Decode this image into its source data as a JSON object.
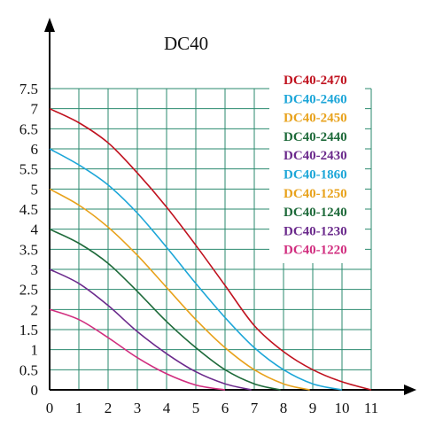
{
  "chart_data": {
    "type": "line",
    "title": "DC40",
    "xlabel": "",
    "ylabel": "",
    "xlim": [
      0,
      11
    ],
    "ylim": [
      0,
      7.5
    ],
    "x_ticks": [
      "0",
      "1",
      "2",
      "3",
      "4",
      "5",
      "6",
      "7",
      "8",
      "9",
      "10",
      "11"
    ],
    "y_ticks": [
      "0",
      "0.5",
      "1",
      "1.5",
      "2",
      "2.5",
      "3",
      "3.5",
      "4",
      "4.5",
      "5",
      "5.5",
      "6",
      "6.5",
      "7",
      "7.5"
    ],
    "grid": true,
    "grid_color": "#2a8a6e",
    "legend_position": "top-right",
    "series": [
      {
        "name": "DC40-2470",
        "color": "#c0121f",
        "x": [
          0,
          1,
          2,
          3,
          4,
          5,
          6,
          7,
          8,
          9,
          10,
          11
        ],
        "y": [
          7,
          6.65,
          6.15,
          5.4,
          4.55,
          3.6,
          2.6,
          1.6,
          0.95,
          0.5,
          0.2,
          0
        ]
      },
      {
        "name": "DC40-2460",
        "color": "#1da6d8",
        "x": [
          0,
          1,
          2,
          3,
          4,
          5,
          6,
          7,
          8,
          9,
          10
        ],
        "y": [
          6,
          5.6,
          5.1,
          4.4,
          3.55,
          2.65,
          1.8,
          1.05,
          0.5,
          0.15,
          0
        ]
      },
      {
        "name": "DC40-2450",
        "color": "#e8a21c"
      },
      {
        "name": "DC40-2440",
        "color": "#1e6a3a"
      },
      {
        "name": "DC40-2430",
        "color": "#6b2a8c"
      },
      {
        "name": "DC40-1860",
        "color": "#1da6d8"
      },
      {
        "name": "DC40-1250",
        "color": "#e8a21c",
        "x": [
          0,
          1,
          2,
          3,
          4,
          5,
          6,
          7,
          8,
          8.9
        ],
        "y": [
          5,
          4.6,
          4.05,
          3.35,
          2.55,
          1.75,
          1.05,
          0.5,
          0.15,
          0
        ]
      },
      {
        "name": "DC40-1240",
        "color": "#1e6a3a",
        "x": [
          0,
          1,
          2,
          3,
          4,
          5,
          6,
          7,
          7.9
        ],
        "y": [
          4,
          3.65,
          3.15,
          2.45,
          1.7,
          1.05,
          0.5,
          0.15,
          0
        ]
      },
      {
        "name": "DC40-1230",
        "color": "#6b2a8c",
        "x": [
          0,
          1,
          2,
          3,
          4,
          5,
          6,
          6.9
        ],
        "y": [
          3,
          2.65,
          2.1,
          1.45,
          0.9,
          0.45,
          0.15,
          0
        ]
      },
      {
        "name": "DC40-1220",
        "color": "#d12e7f",
        "x": [
          0,
          1,
          2,
          3,
          4,
          5,
          6
        ],
        "y": [
          2,
          1.75,
          1.3,
          0.8,
          0.4,
          0.12,
          0
        ]
      }
    ]
  }
}
